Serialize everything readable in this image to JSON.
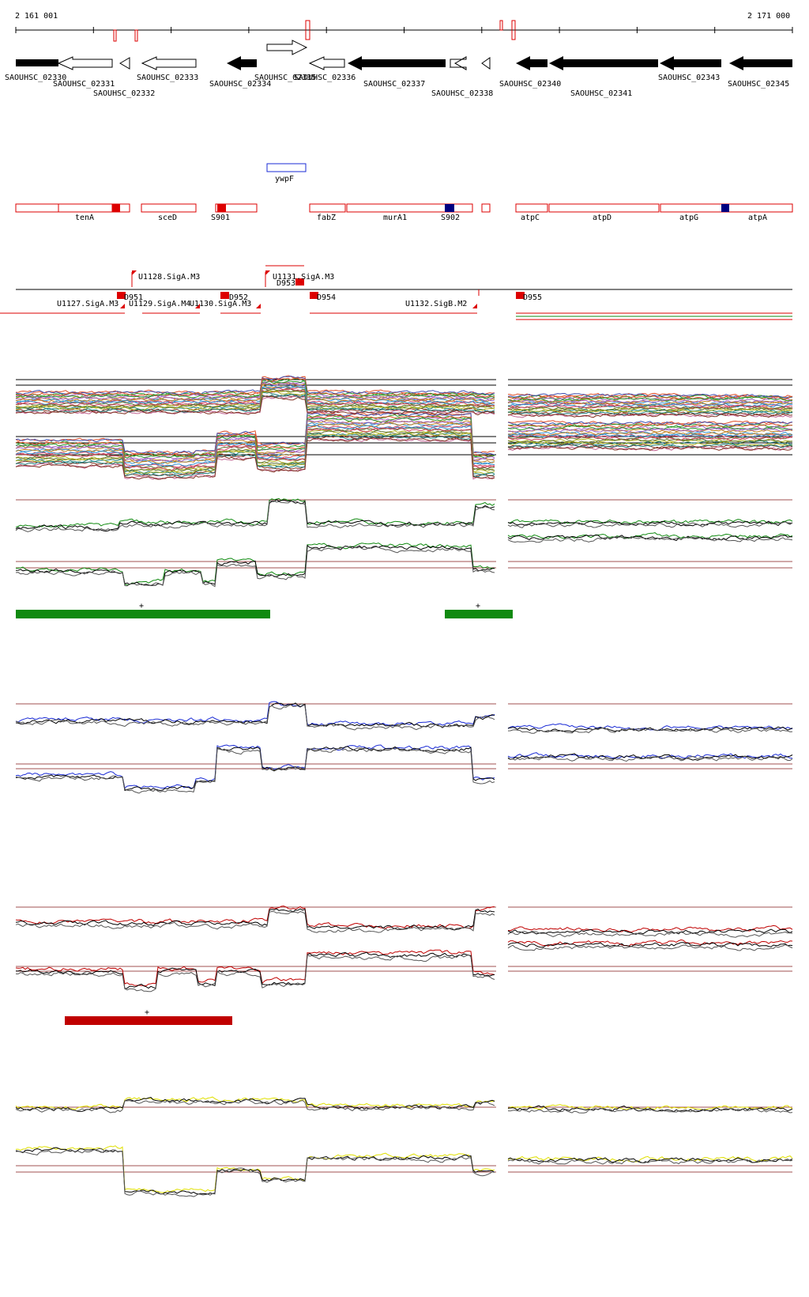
{
  "coordinates": {
    "start": "2 161 001",
    "end": "2 171 000"
  },
  "colors": {
    "gene": "#000000",
    "segment": "#dd0000",
    "blue_box": "#1a2bd6",
    "dark_blue": "#000080",
    "green": "#108a10",
    "blue": "#1a2bd6",
    "red": "#c00000",
    "yellow": "#e0e000",
    "guide": "#a05050"
  },
  "genes": [
    {
      "label": "SAOUHSC_02330",
      "strand": "-",
      "fill": "solid"
    },
    {
      "label": "SAOUHSC_02331",
      "strand": "-",
      "fill": "open"
    },
    {
      "label": "SAOUHSC_02332",
      "strand": "-",
      "fill": "open"
    },
    {
      "label": "SAOUHSC_02333",
      "strand": "-",
      "fill": "open"
    },
    {
      "label": "SAOUHSC_02334",
      "strand": "-",
      "fill": "solid"
    },
    {
      "label": "SAOUHSC_02335",
      "strand": "+",
      "fill": "open"
    },
    {
      "label": "SAOUHSC_02336",
      "strand": "-",
      "fill": "open"
    },
    {
      "label": "SAOUHSC_02337",
      "strand": "-",
      "fill": "solid"
    },
    {
      "label": "SAOUHSC_02338",
      "strand": "-",
      "fill": "open"
    },
    {
      "label": "SAOUHSC_02340",
      "strand": "-",
      "fill": "solid"
    },
    {
      "label": "SAOUHSC_02341",
      "strand": "-",
      "fill": "solid"
    },
    {
      "label": "SAOUHSC_02343",
      "strand": "-",
      "fill": "solid"
    },
    {
      "label": "SAOUHSC_02345",
      "strand": "-",
      "fill": "solid"
    }
  ],
  "feature_box": {
    "label": "ywpF"
  },
  "segments": [
    {
      "label": "tenA"
    },
    {
      "label": "sceD"
    },
    {
      "label": "S901"
    },
    {
      "label": "fabZ"
    },
    {
      "label": "murA1"
    },
    {
      "label": "S902"
    },
    {
      "label": "atpC"
    },
    {
      "label": "atpD"
    },
    {
      "label": "atpG"
    },
    {
      "label": "atpA"
    }
  ],
  "upstream_labels": [
    {
      "label": "U1127.SigA.M3"
    },
    {
      "label": "U1128.SigA.M3"
    },
    {
      "label": "U1129.SigA.M4"
    },
    {
      "label": "U1130.SigA.M3"
    },
    {
      "label": "U1131.SigA.M3"
    },
    {
      "label": "U1132.SigB.M2"
    }
  ],
  "downstream_labels": [
    {
      "label": "D951"
    },
    {
      "label": "D952"
    },
    {
      "label": "D953"
    },
    {
      "label": "D954"
    },
    {
      "label": "D955"
    }
  ],
  "bar_markers": [
    {
      "label": "+"
    },
    {
      "label": "+"
    },
    {
      "label": "+"
    }
  ]
}
